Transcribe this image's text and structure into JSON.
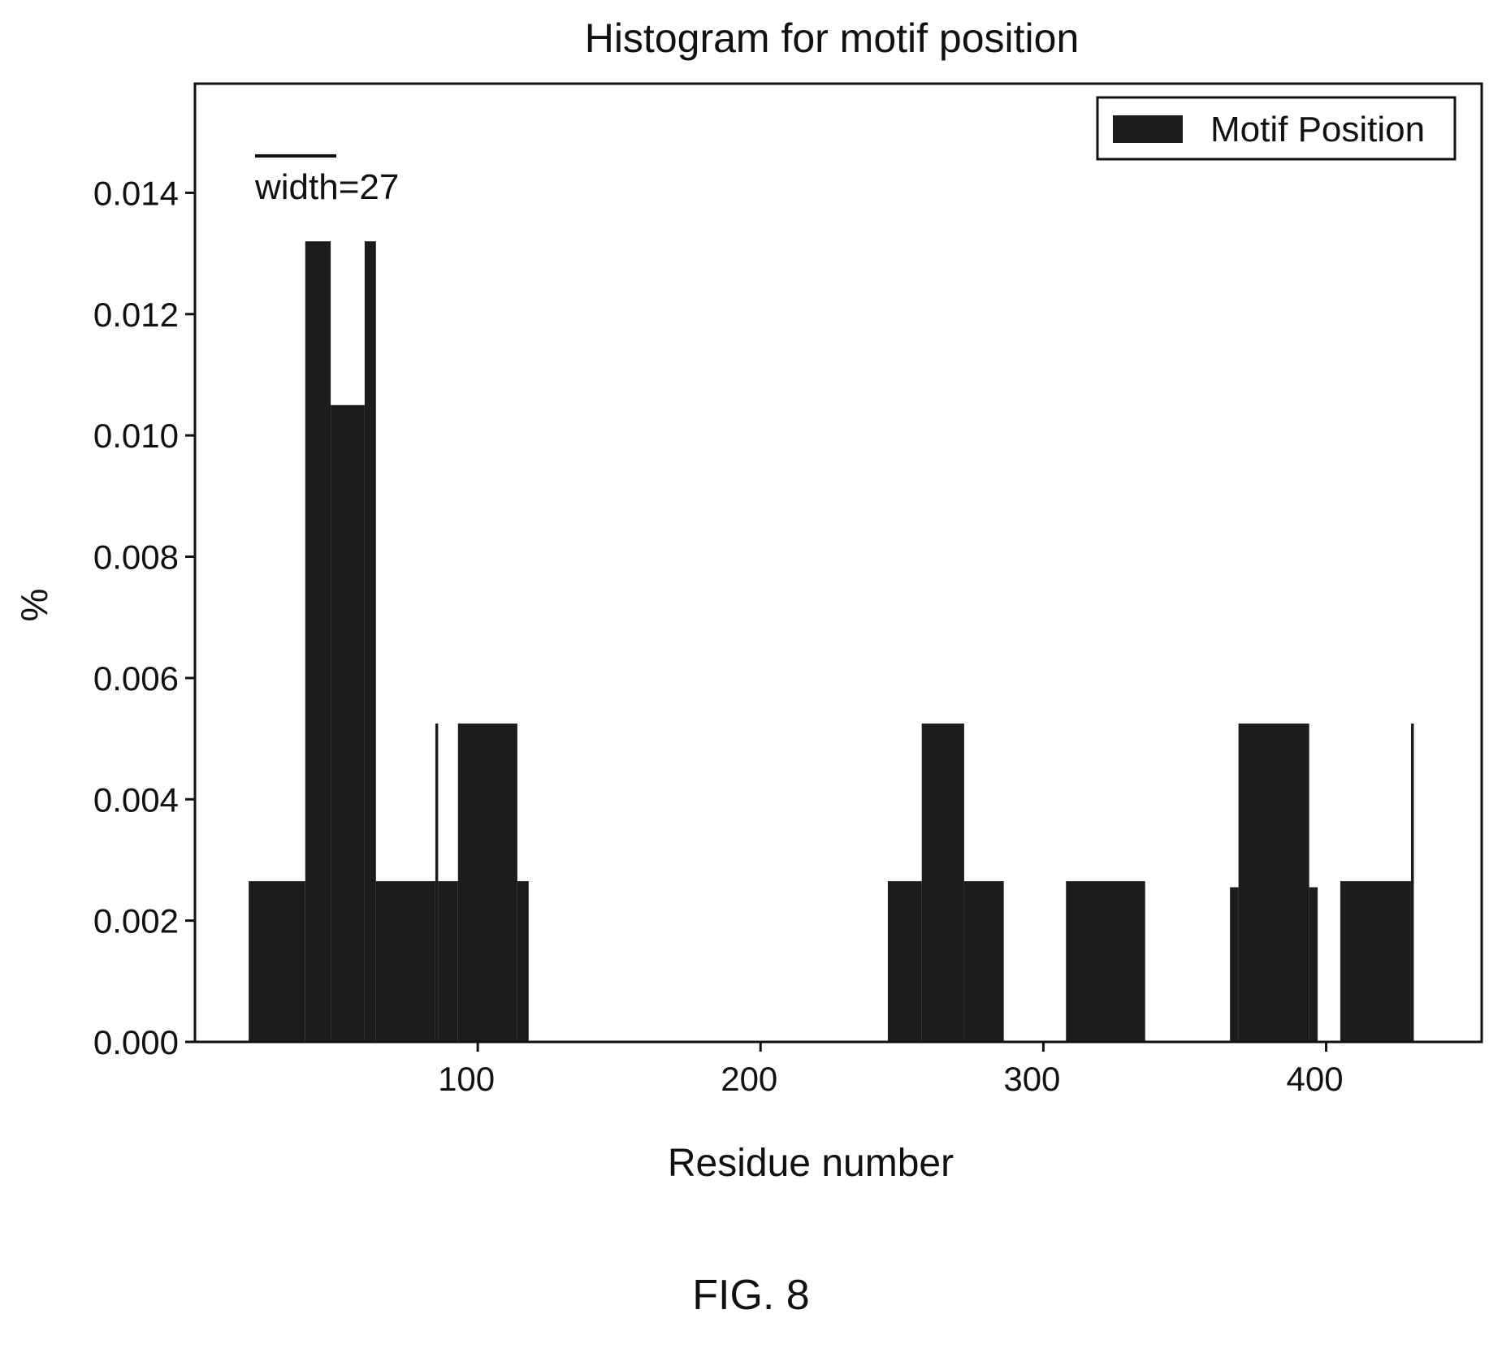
{
  "chart_data": {
    "type": "bar",
    "title": "Histogram for motif position",
    "xlabel": "Residue number",
    "ylabel": "%",
    "annotation": "width=27",
    "legend": {
      "label": "Motif Position",
      "placement": "top-right"
    },
    "xlim": [
      0,
      455
    ],
    "ylim": [
      0,
      0.0158
    ],
    "x_ticks": [
      100,
      200,
      300,
      400
    ],
    "y_ticks": [
      0.0,
      0.002,
      0.004,
      0.006,
      0.008,
      0.01,
      0.012,
      0.014
    ],
    "y_tick_labels": [
      "0.000",
      "0.002",
      "0.004",
      "0.006",
      "0.008",
      "0.010",
      "0.012",
      "0.014"
    ],
    "grid": false,
    "color": "#1c1c1c",
    "bins": [
      {
        "x0": 19,
        "x1": 39,
        "value": 0.00265
      },
      {
        "x0": 39,
        "x1": 48,
        "value": 0.0132
      },
      {
        "x0": 48,
        "x1": 60,
        "value": 0.0105
      },
      {
        "x0": 60,
        "x1": 64,
        "value": 0.0132
      },
      {
        "x0": 64,
        "x1": 85,
        "value": 0.00265
      },
      {
        "x0": 85,
        "x1": 86,
        "value": 0.00525
      },
      {
        "x0": 86,
        "x1": 93,
        "value": 0.00265
      },
      {
        "x0": 93,
        "x1": 114,
        "value": 0.00525
      },
      {
        "x0": 114,
        "x1": 118,
        "value": 0.00265
      },
      {
        "x0": 245,
        "x1": 257,
        "value": 0.00265
      },
      {
        "x0": 257,
        "x1": 272,
        "value": 0.00525
      },
      {
        "x0": 272,
        "x1": 286,
        "value": 0.00265
      },
      {
        "x0": 308,
        "x1": 336,
        "value": 0.00265
      },
      {
        "x0": 366,
        "x1": 369,
        "value": 0.00255
      },
      {
        "x0": 369,
        "x1": 394,
        "value": 0.00525
      },
      {
        "x0": 394,
        "x1": 397,
        "value": 0.00255
      },
      {
        "x0": 405,
        "x1": 430,
        "value": 0.00265
      },
      {
        "x0": 430,
        "x1": 431,
        "value": 0.00525
      }
    ]
  },
  "caption": "FIG. 8"
}
